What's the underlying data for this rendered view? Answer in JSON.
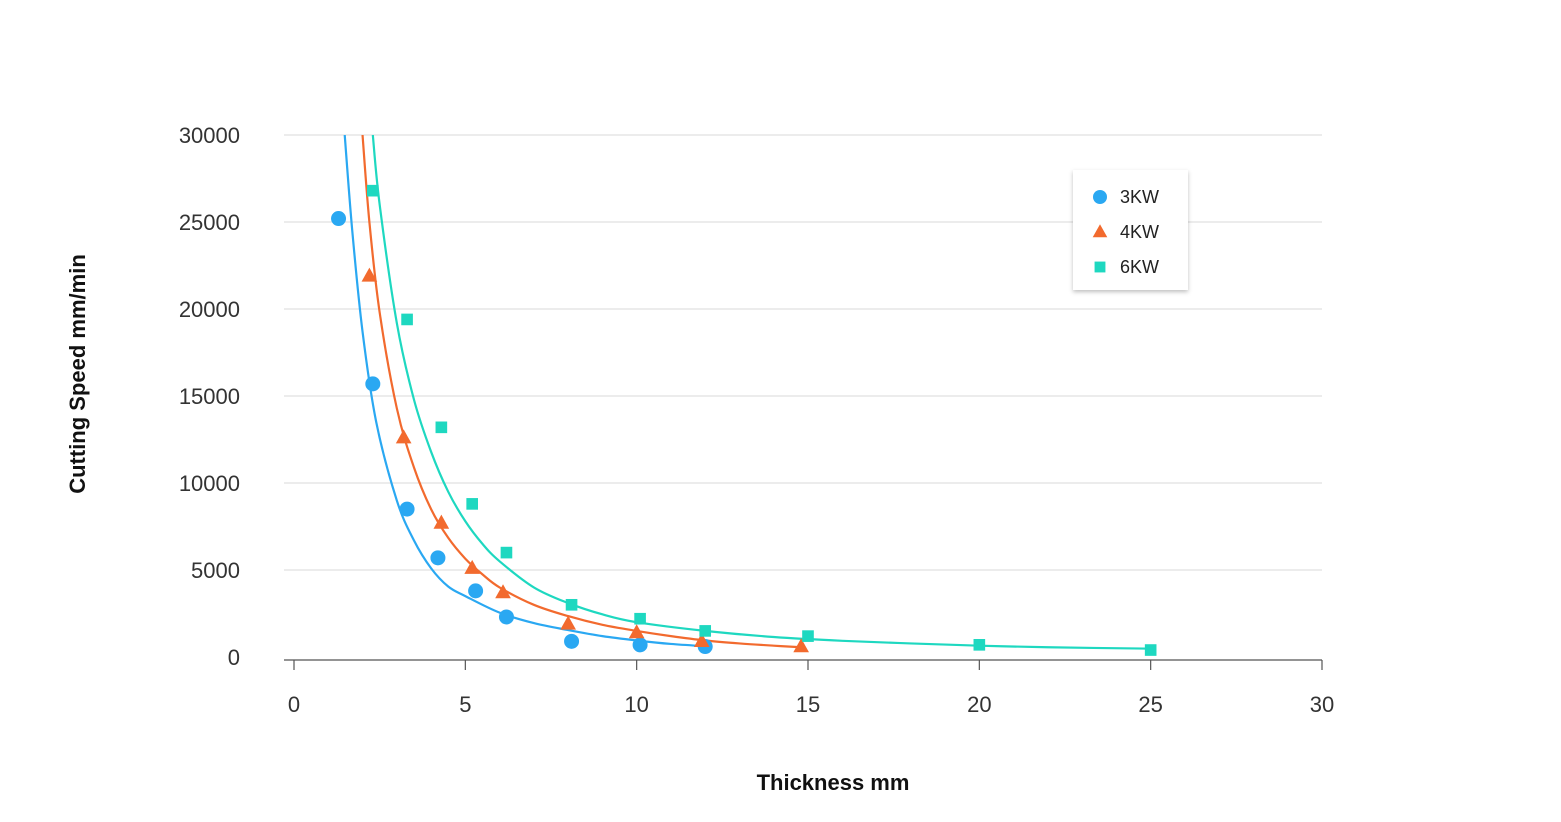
{
  "chart_data": {
    "type": "scatter",
    "title": "",
    "xlabel": "Thickness mm",
    "ylabel": "Cutting Speed mm/min",
    "xlim": [
      0,
      30
    ],
    "ylim": [
      0,
      30000
    ],
    "xticks": [
      0,
      5,
      10,
      15,
      20,
      25,
      30
    ],
    "yticks": [
      0,
      5000,
      10000,
      15000,
      20000,
      25000,
      30000
    ],
    "grid": "horizontal",
    "legend_position": "top-right",
    "series": [
      {
        "name": "3KW",
        "marker": "circle",
        "color": "#2aa8f2",
        "points": [
          [
            1.3,
            25200
          ],
          [
            2.3,
            15700
          ],
          [
            3.3,
            8500
          ],
          [
            4.2,
            5700
          ],
          [
            5.3,
            3800
          ],
          [
            6.2,
            2300
          ],
          [
            8.1,
            900
          ],
          [
            10.1,
            700
          ],
          [
            12.0,
            600
          ]
        ],
        "trend": [
          [
            1.48,
            30000
          ],
          [
            1.7,
            24500
          ],
          [
            2.0,
            18700
          ],
          [
            2.4,
            13500
          ],
          [
            3.0,
            9000
          ],
          [
            3.5,
            6700
          ],
          [
            4.0,
            5100
          ],
          [
            4.5,
            4050
          ],
          [
            5.0,
            3500
          ],
          [
            6.0,
            2550
          ],
          [
            7.0,
            1950
          ],
          [
            8.0,
            1550
          ],
          [
            9.0,
            1200
          ],
          [
            10.0,
            950
          ],
          [
            11.0,
            750
          ],
          [
            12.0,
            620
          ]
        ]
      },
      {
        "name": "4KW",
        "marker": "triangle",
        "color": "#f26a2e",
        "points": [
          [
            2.2,
            21900
          ],
          [
            3.2,
            12600
          ],
          [
            4.3,
            7700
          ],
          [
            5.2,
            5100
          ],
          [
            6.1,
            3700
          ],
          [
            8.0,
            1900
          ],
          [
            10.0,
            1400
          ],
          [
            11.9,
            900
          ],
          [
            14.8,
            600
          ]
        ],
        "trend": [
          [
            2.0,
            30000
          ],
          [
            2.2,
            25000
          ],
          [
            2.5,
            19800
          ],
          [
            3.0,
            14300
          ],
          [
            3.5,
            10900
          ],
          [
            4.0,
            8500
          ],
          [
            4.5,
            6850
          ],
          [
            5.0,
            5650
          ],
          [
            5.5,
            4750
          ],
          [
            6.0,
            4000
          ],
          [
            7.0,
            3000
          ],
          [
            8.0,
            2350
          ],
          [
            9.0,
            1850
          ],
          [
            10.0,
            1500
          ],
          [
            11.0,
            1200
          ],
          [
            12.0,
            950
          ],
          [
            13.0,
            780
          ],
          [
            14.0,
            650
          ],
          [
            14.8,
            560
          ]
        ]
      },
      {
        "name": "6KW",
        "marker": "square",
        "color": "#1ed8c0",
        "points": [
          [
            2.3,
            26800
          ],
          [
            3.3,
            19400
          ],
          [
            4.3,
            13200
          ],
          [
            5.2,
            8800
          ],
          [
            6.2,
            6000
          ],
          [
            8.1,
            3000
          ],
          [
            10.1,
            2200
          ],
          [
            12.0,
            1500
          ],
          [
            15.0,
            1200
          ],
          [
            20.0,
            700
          ],
          [
            25.0,
            400
          ]
        ],
        "trend": [
          [
            2.3,
            30000
          ],
          [
            2.5,
            26000
          ],
          [
            3.0,
            19200
          ],
          [
            3.5,
            14800
          ],
          [
            4.0,
            11800
          ],
          [
            4.5,
            9500
          ],
          [
            5.0,
            7800
          ],
          [
            5.5,
            6500
          ],
          [
            6.0,
            5500
          ],
          [
            7.0,
            4000
          ],
          [
            8.0,
            3100
          ],
          [
            9.0,
            2450
          ],
          [
            10.0,
            2000
          ],
          [
            12.0,
            1500
          ],
          [
            14.0,
            1150
          ],
          [
            16.0,
            930
          ],
          [
            18.0,
            780
          ],
          [
            20.0,
            650
          ],
          [
            22.0,
            560
          ],
          [
            25.0,
            480
          ]
        ]
      }
    ]
  }
}
